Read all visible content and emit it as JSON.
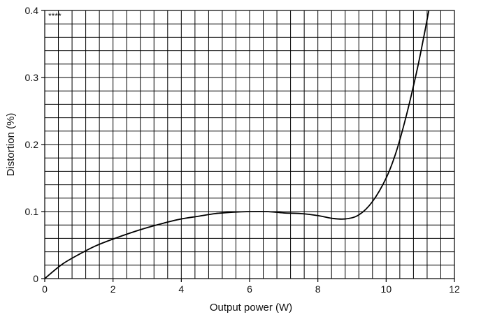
{
  "chart_data": {
    "type": "line",
    "title": "",
    "annotation": "****",
    "xlabel": "Output power (W)",
    "ylabel": "Distortion (%)",
    "xlim": [
      0,
      12
    ],
    "ylim": [
      0,
      0.4
    ],
    "x_ticks": [
      0,
      2,
      4,
      6,
      8,
      10,
      12
    ],
    "x_tick_labels": [
      "0",
      "2",
      "4",
      "6",
      "8",
      "10",
      "12"
    ],
    "y_ticks": [
      0,
      0.1,
      0.2,
      0.3,
      0.4
    ],
    "y_tick_labels": [
      "0",
      "0.1",
      "0.2",
      "0.3",
      "0.4"
    ],
    "grid": true,
    "grid_minor_x_step": 0.4,
    "grid_minor_y_step": 0.02,
    "series": [
      {
        "x": [
          0,
          0.5,
          1,
          1.5,
          2,
          2.5,
          3,
          3.5,
          4,
          4.5,
          5,
          5.5,
          6,
          6.5,
          7,
          7.5,
          8,
          8.4,
          8.8,
          9.2,
          9.6,
          10,
          10.3,
          10.6,
          10.9,
          11.1,
          11.25
        ],
        "y": [
          0,
          0.021,
          0.036,
          0.049,
          0.059,
          0.068,
          0.076,
          0.083,
          0.089,
          0.093,
          0.097,
          0.099,
          0.1,
          0.1,
          0.098,
          0.097,
          0.094,
          0.09,
          0.089,
          0.095,
          0.115,
          0.15,
          0.19,
          0.245,
          0.31,
          0.36,
          0.4
        ]
      }
    ]
  }
}
